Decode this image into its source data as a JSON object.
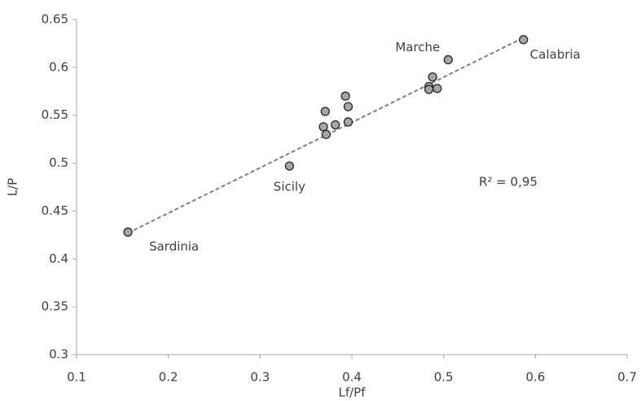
{
  "chart_data": {
    "type": "scatter",
    "x_label": "Lf/Pf",
    "y_label": "L/P",
    "xlim": [
      0.1,
      0.7
    ],
    "ylim": [
      0.3,
      0.65
    ],
    "xticks": [
      0.1,
      0.2,
      0.3,
      0.4,
      0.5,
      0.6,
      0.7
    ],
    "yticks": [
      0.3,
      0.35,
      0.4,
      0.45,
      0.5,
      0.55,
      0.6,
      0.65
    ],
    "grid": false,
    "color": "#a6a6a6",
    "x": [
      0.156,
      0.332,
      0.587,
      0.505,
      0.371,
      0.369,
      0.372,
      0.382,
      0.393,
      0.396,
      0.396,
      0.484,
      0.484,
      0.488,
      0.493
    ],
    "values": [
      0.428,
      0.497,
      0.629,
      0.608,
      0.554,
      0.538,
      0.53,
      0.54,
      0.57,
      0.559,
      0.543,
      0.58,
      0.577,
      0.59,
      0.578
    ],
    "labels": [
      "Sardinia",
      "Sicily",
      "Calabria",
      "Marche",
      null,
      null,
      null,
      null,
      null,
      null,
      null,
      null,
      null,
      null,
      null
    ],
    "trendline": {
      "x": [
        0.156,
        0.587
      ],
      "values": [
        0.427,
        0.631
      ],
      "color": "#808080"
    },
    "annotation": "R² = 0,95"
  }
}
